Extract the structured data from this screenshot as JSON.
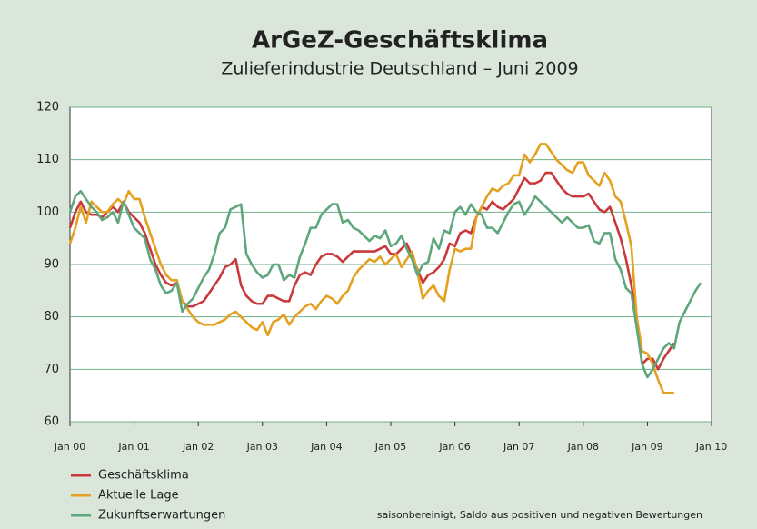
{
  "chart_data": {
    "type": "line",
    "title": "ArGeZ-Geschäftsklima",
    "subtitle": "Zulieferindustrie Deutschland – Juni 2009",
    "note": "saisonbereinigt, Saldo aus positiven und negativen Bewertungen",
    "x": [
      "2000-01",
      "2000-02",
      "2000-03",
      "2000-04",
      "2000-05",
      "2000-06",
      "2000-07",
      "2000-08",
      "2000-09",
      "2000-10",
      "2000-11",
      "2000-12",
      "2001-01",
      "2001-02",
      "2001-03",
      "2001-04",
      "2001-05",
      "2001-06",
      "2001-07",
      "2001-08",
      "2001-09",
      "2001-10",
      "2001-11",
      "2001-12",
      "2002-01",
      "2002-02",
      "2002-03",
      "2002-04",
      "2002-05",
      "2002-06",
      "2002-07",
      "2002-08",
      "2002-09",
      "2002-10",
      "2002-11",
      "2002-12",
      "2003-01",
      "2003-02",
      "2003-03",
      "2003-04",
      "2003-05",
      "2003-06",
      "2003-07",
      "2003-08",
      "2003-09",
      "2003-10",
      "2003-11",
      "2003-12",
      "2004-01",
      "2004-02",
      "2004-03",
      "2004-04",
      "2004-05",
      "2004-06",
      "2004-07",
      "2004-08",
      "2004-09",
      "2004-10",
      "2004-11",
      "2004-12",
      "2005-01",
      "2005-02",
      "2005-03",
      "2005-04",
      "2005-05",
      "2005-06",
      "2005-07",
      "2005-08",
      "2005-09",
      "2005-10",
      "2005-11",
      "2005-12",
      "2006-01",
      "2006-02",
      "2006-03",
      "2006-04",
      "2006-05",
      "2006-06",
      "2006-07",
      "2006-08",
      "2006-09",
      "2006-10",
      "2006-11",
      "2006-12",
      "2007-01",
      "2007-02",
      "2007-03",
      "2007-04",
      "2007-05",
      "2007-06",
      "2007-07",
      "2007-08",
      "2007-09",
      "2007-10",
      "2007-11",
      "2007-12",
      "2008-01",
      "2008-02",
      "2008-03",
      "2008-04",
      "2008-05",
      "2008-06",
      "2008-07",
      "2008-08",
      "2008-09",
      "2008-10",
      "2008-11",
      "2008-12",
      "2009-01",
      "2009-02",
      "2009-03",
      "2009-04",
      "2009-05",
      "2009-06",
      "2009-07",
      "2009-08",
      "2009-09",
      "2009-10",
      "2009-11"
    ],
    "series": [
      {
        "name": "Geschäftsklima",
        "color": "#c9383b",
        "values": [
          97,
          100,
          102,
          100,
          99.5,
          99.5,
          99,
          100,
          101,
          100,
          102,
          100,
          99,
          98,
          96,
          93,
          90,
          88,
          86.5,
          86,
          86.5,
          83,
          82,
          82,
          82.5,
          83,
          84.5,
          86,
          87.5,
          89.5,
          90,
          91,
          86,
          84,
          83,
          82.5,
          82.5,
          84,
          84,
          83.5,
          83,
          83,
          86,
          88,
          88.5,
          88,
          90,
          91.5,
          92,
          92,
          91.5,
          90.5,
          91.5,
          92.5,
          92.5,
          92.5,
          92.5,
          92.5,
          93,
          93.5,
          92,
          92,
          93,
          94,
          91.5,
          89,
          86.5,
          88,
          88.5,
          89.5,
          91,
          94,
          93.5,
          96,
          96.5,
          96,
          99,
          101,
          100.5,
          102,
          101,
          100.5,
          101.5,
          102.5,
          104.5,
          106.5,
          105.5,
          105.5,
          106,
          107.5,
          107.5,
          106,
          104.5,
          103.5,
          103,
          103,
          103,
          103.5,
          102,
          100.5,
          100,
          101,
          98,
          95,
          91,
          86,
          80,
          71,
          72,
          72,
          70,
          72,
          73.5,
          75,
          null,
          null,
          null,
          null,
          null
        ]
      },
      {
        "name": "Aktuelle Lage",
        "color": "#e3a11f",
        "values": [
          94,
          97,
          101,
          98,
          102,
          101,
          100,
          100,
          101.5,
          102.5,
          101.5,
          104,
          102.5,
          102.5,
          99,
          96,
          93,
          90,
          88,
          87,
          87,
          83,
          81.5,
          80,
          79,
          78.5,
          78.5,
          78.5,
          79,
          79.5,
          80.5,
          81,
          80,
          79,
          78,
          77.5,
          79,
          76.5,
          79,
          79.5,
          80.5,
          78.5,
          80,
          81,
          82,
          82.5,
          81.5,
          83,
          84,
          83.5,
          82.5,
          84,
          85,
          87.5,
          89,
          90,
          91,
          90.5,
          91.5,
          90,
          91,
          92,
          89.5,
          91,
          92.5,
          88.5,
          83.5,
          85,
          86,
          84,
          83,
          89,
          93,
          92.5,
          93,
          93,
          99,
          101,
          103,
          104.5,
          104,
          105,
          105.5,
          107,
          107,
          111,
          109.5,
          111,
          113,
          113,
          111.5,
          110,
          109,
          108,
          107.5,
          109.5,
          109.5,
          107,
          106,
          105,
          107.5,
          106,
          103,
          102,
          98,
          93.5,
          80,
          73.5,
          73,
          71,
          68,
          65.5,
          65.5,
          65.5,
          null,
          null,
          null,
          null,
          null
        ]
      },
      {
        "name": "Zukunftserwartungen",
        "color": "#5ea67c",
        "values": [
          100,
          103,
          104,
          102.5,
          101,
          100,
          98.5,
          99,
          100,
          98,
          102,
          99.5,
          97,
          96,
          95,
          91,
          89,
          86,
          84.5,
          85,
          86.5,
          81,
          82.5,
          83.5,
          85.5,
          87.5,
          89,
          92,
          96,
          97,
          100.5,
          101,
          101.5,
          92,
          90,
          88.5,
          87.5,
          88,
          90,
          90,
          87,
          88,
          87.5,
          91.5,
          94,
          97,
          97,
          99.5,
          100.5,
          101.5,
          101.5,
          98,
          98.5,
          97,
          96.5,
          95.5,
          94.5,
          95.5,
          95,
          96.5,
          93.5,
          94,
          95.5,
          93,
          91,
          88,
          90,
          90.5,
          95,
          93,
          96.5,
          96,
          100,
          101,
          99.5,
          101.5,
          100,
          99.5,
          97,
          97,
          96,
          98,
          100,
          101.5,
          102,
          99.5,
          101,
          103,
          102,
          101,
          100,
          99,
          98,
          99,
          98,
          97,
          97,
          97.5,
          94.5,
          94,
          96,
          96,
          91,
          89,
          85.5,
          84.5,
          78,
          71,
          68.5,
          70,
          72,
          74,
          75,
          74,
          79,
          81,
          83,
          85,
          86.5
        ]
      }
    ],
    "xlim": [
      "2000-01",
      "2010-01"
    ],
    "xticks": [
      {
        "value": "2000-01",
        "label": "Jan 00"
      },
      {
        "value": "2001-01",
        "label": "Jan 01"
      },
      {
        "value": "2002-01",
        "label": "Jan 02"
      },
      {
        "value": "2003-01",
        "label": "Jan 03"
      },
      {
        "value": "2004-01",
        "label": "Jan 04"
      },
      {
        "value": "2005-01",
        "label": "Jan 05"
      },
      {
        "value": "2006-01",
        "label": "Jan 06"
      },
      {
        "value": "2007-01",
        "label": "Jan 07"
      },
      {
        "value": "2008-01",
        "label": "Jan 08"
      },
      {
        "value": "2009-01",
        "label": "Jan 09"
      },
      {
        "value": "2010-01",
        "label": "Jan 10"
      }
    ],
    "ylim": [
      60,
      120
    ],
    "yticks": [
      60,
      70,
      80,
      90,
      100,
      110,
      120
    ],
    "grid": true,
    "legend": "bottom-left"
  }
}
